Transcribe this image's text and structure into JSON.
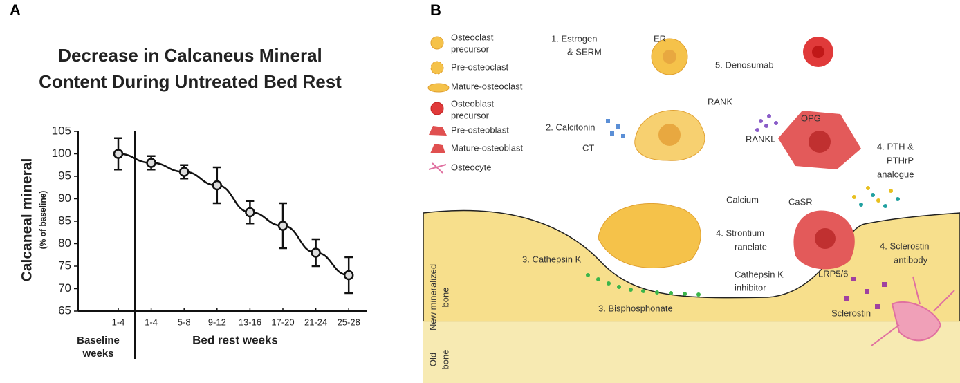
{
  "panels": [
    "A",
    "B"
  ],
  "chart_data": {
    "type": "line",
    "title": [
      "Decrease in Calcaneus Mineral",
      "Content During Untreated Bed Rest"
    ],
    "ylabel": [
      "Calcaneal mineral",
      "(% of baseline)"
    ],
    "categories": [
      "1-4",
      "1-4",
      "5-8",
      "9-12",
      "13-16",
      "17-20",
      "21-24",
      "25-28"
    ],
    "x_groups": [
      {
        "lines": [
          "Baseline",
          "weeks"
        ]
      },
      {
        "lines": [
          "Bed rest weeks"
        ]
      }
    ],
    "series": [
      {
        "color": "#111111",
        "values": [
          100,
          98,
          96,
          93,
          87,
          84,
          78,
          73
        ],
        "errors": [
          3.5,
          1.5,
          1.5,
          4,
          2.5,
          5,
          3,
          4
        ]
      }
    ],
    "ylim": [
      65,
      105
    ],
    "yticks": [
      65,
      70,
      75,
      80,
      85,
      90,
      95,
      100,
      105
    ]
  },
  "diagram": {
    "legend": [
      {
        "lines": [
          "Osteoclast",
          "precursor"
        ]
      },
      {
        "lines": [
          "Pre-osteoclast"
        ]
      },
      {
        "lines": [
          "Mature-osteoclast"
        ]
      },
      {
        "lines": [
          "Osteoblast",
          "precursor"
        ]
      },
      {
        "lines": [
          "Pre-osteoblast"
        ]
      },
      {
        "lines": [
          "Mature-osteoblast"
        ]
      },
      {
        "lines": [
          "Osteocyte"
        ]
      }
    ],
    "labels": [
      {
        "lines": [
          "1.  Estrogen",
          "& SERM"
        ]
      },
      {
        "lines": [
          "ER"
        ]
      },
      {
        "lines": [
          "5.  Denosumab"
        ]
      },
      {
        "lines": [
          "RANK"
        ]
      },
      {
        "lines": [
          "OPG"
        ]
      },
      {
        "lines": [
          "2.  Calcitonin"
        ]
      },
      {
        "lines": [
          "CT"
        ]
      },
      {
        "lines": [
          "RANKL"
        ]
      },
      {
        "lines": [
          "4. PTH &",
          "PTHrP",
          "analogue"
        ]
      },
      {
        "lines": [
          "Calcium"
        ]
      },
      {
        "lines": [
          "CaSR"
        ]
      },
      {
        "lines": [
          "4.  Strontium",
          "ranelate"
        ]
      },
      {
        "lines": [
          "3.  Cathepsin K"
        ]
      },
      {
        "lines": [
          "Cathepsin K",
          "inhibitor"
        ]
      },
      {
        "lines": [
          "4. Sclerostin",
          "antibody"
        ]
      },
      {
        "lines": [
          "LRP5/6"
        ]
      },
      {
        "lines": [
          "3.  Bisphosphonate"
        ]
      },
      {
        "lines": [
          "Sclerostin"
        ]
      }
    ],
    "regions": [
      {
        "lines": [
          "New mineralized",
          "bone"
        ]
      },
      {
        "lines": [
          "Old",
          "bone"
        ]
      }
    ]
  }
}
